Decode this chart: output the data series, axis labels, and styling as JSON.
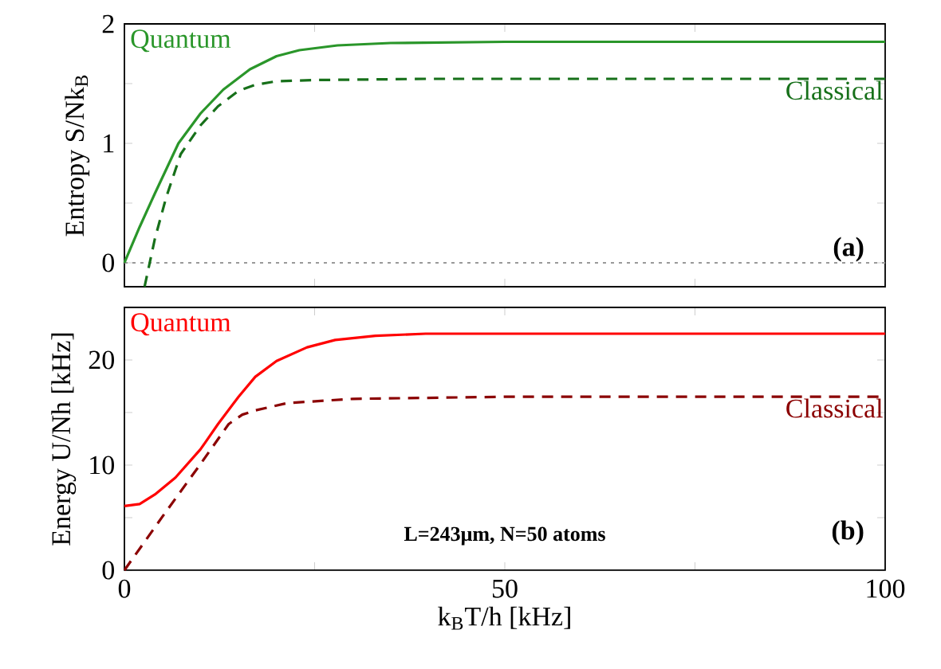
{
  "chart_data": [
    {
      "type": "line",
      "ylabel": "Entropy S/Nk$_{B}$",
      "xlim": [
        0,
        100
      ],
      "ylim": [
        -0.2,
        2
      ],
      "xticks": [
        {
          "value": 0,
          "label": null
        },
        {
          "value": 25,
          "label": null
        },
        {
          "value": 50,
          "label": null
        },
        {
          "value": 75,
          "label": null
        },
        {
          "value": 100,
          "label": null
        }
      ],
      "yticks": [
        0,
        {
          "value": 0.5,
          "label": null
        },
        1,
        {
          "value": 1.5,
          "label": null
        },
        2
      ],
      "tick_labels": "y",
      "series": [
        {
          "name": "Quantum",
          "color": "#2a962a",
          "line_style": "solid",
          "x": [
            0,
            2,
            4,
            7.1,
            10,
            13,
            16.5,
            20,
            23,
            28,
            35,
            50,
            100
          ],
          "values": [
            0,
            0.3,
            0.58,
            1.0,
            1.25,
            1.45,
            1.62,
            1.73,
            1.78,
            1.82,
            1.84,
            1.85,
            1.85
          ]
        },
        {
          "name": "Classical",
          "color": "#17701a",
          "line_style": "dashed",
          "x": [
            2.65,
            4,
            5.5,
            7.4,
            10,
            12.3,
            15,
            17.2,
            20,
            25,
            40,
            100
          ],
          "values": [
            -0.2,
            0.2,
            0.55,
            0.91,
            1.15,
            1.31,
            1.44,
            1.49,
            1.52,
            1.53,
            1.54,
            1.54
          ]
        }
      ],
      "ref_lines": [
        {
          "axis": "y",
          "value": 0,
          "color": "#999999",
          "line_style": "dotted"
        }
      ],
      "annotations": [
        "(a)"
      ]
    },
    {
      "type": "line",
      "xlabel": "k$_{B}$T/h [kHz]",
      "ylabel": "Energy U/Nh [kHz]",
      "xlim": [
        0,
        100
      ],
      "ylim": [
        0,
        25
      ],
      "xticks": [
        0,
        {
          "value": 25,
          "label": null
        },
        50,
        {
          "value": 75,
          "label": null
        },
        100
      ],
      "yticks": [
        0,
        {
          "value": 5,
          "label": null
        },
        10,
        {
          "value": 15,
          "label": null
        },
        20
      ],
      "series": [
        {
          "name": "Quantum",
          "color": "#ff0000",
          "line_style": "solid",
          "x": [
            0,
            2,
            4,
            6.7,
            10,
            12.3,
            15,
            17.2,
            20,
            24,
            27.7,
            33,
            39.6,
            100
          ],
          "values": [
            6.1,
            6.3,
            7.2,
            8.8,
            11.5,
            13.9,
            16.5,
            18.4,
            19.9,
            21.2,
            21.9,
            22.3,
            22.5,
            22.5
          ]
        },
        {
          "name": "Classical",
          "color": "#8b0000",
          "line_style": "dashed",
          "x": [
            0,
            5,
            10,
            13.7,
            15.5,
            17.2,
            21.4,
            30,
            50,
            100
          ],
          "values": [
            0,
            5.1,
            10.1,
            13.9,
            14.8,
            15.2,
            15.9,
            16.3,
            16.5,
            16.5
          ]
        }
      ],
      "annotations": [
        "L=243μm, N=50 atoms",
        "(b)"
      ]
    }
  ]
}
